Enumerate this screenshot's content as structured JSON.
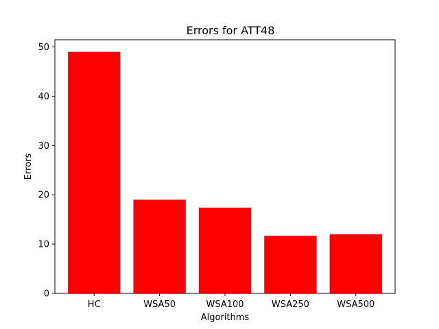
{
  "chart_data": {
    "type": "bar",
    "title": "Errors for ATT48",
    "xlabel": "Algorithms",
    "ylabel": "Errors",
    "categories": [
      "HC",
      "WSA50",
      "WSA100",
      "WSA250",
      "WSA500"
    ],
    "values": [
      49,
      19,
      17.4,
      11.7,
      12
    ],
    "ylim": [
      0,
      51.45
    ],
    "yticks": [
      "0",
      "10",
      "20",
      "30",
      "40",
      "50"
    ],
    "bar_color": "#ff0000",
    "grid": false,
    "legend": "none"
  }
}
